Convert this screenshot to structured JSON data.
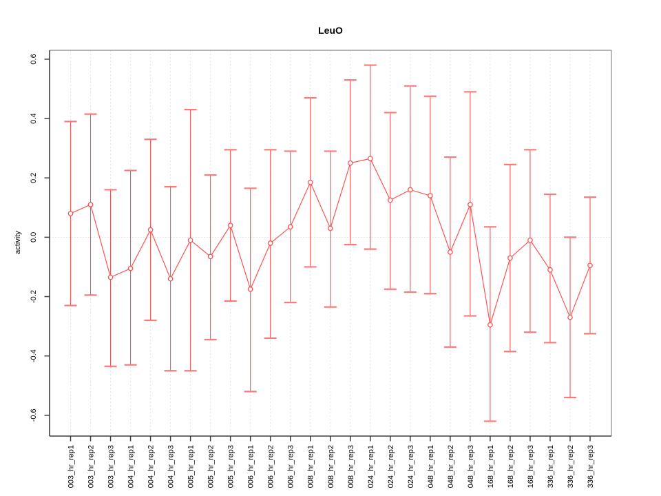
{
  "chart_data": {
    "type": "line",
    "title": "LeuO",
    "xlabel": "",
    "ylabel": "activity",
    "ylim": [
      -0.67,
      0.63
    ],
    "yticks": [
      0.6,
      0.4,
      0.2,
      0.0,
      -0.2,
      -0.4,
      -0.6
    ],
    "ytick_labels": [
      "0.6",
      "0.4",
      "0.2",
      "0.0",
      "-0.2",
      "-0.4",
      "-0.6"
    ],
    "legend": "none",
    "grid": {
      "vertical_dashed_per_category": true,
      "horizontal_dotted_zero_line": true
    },
    "marker": "open-circle",
    "categories": [
      "003_hr_rep1",
      "003_hr_rep2",
      "003_hr_rep3",
      "004_hr_rep1",
      "004_hr_rep2",
      "004_hr_rep3",
      "005_hr_rep1",
      "005_hr_rep2",
      "005_hr_rep3",
      "006_hr_rep1",
      "006_hr_rep2",
      "006_hr_rep3",
      "008_hr_rep1",
      "008_hr_rep2",
      "008_hr_rep3",
      "024_hr_rep1",
      "024_hr_rep2",
      "024_hr_rep3",
      "048_hr_rep1",
      "048_hr_rep2",
      "048_hr_rep3",
      "168_hr_rep1",
      "168_hr_rep2",
      "168_hr_rep3",
      "336_hr_rep1",
      "336_hr_rep2",
      "336_hr_rep3"
    ],
    "series": [
      {
        "name": "activity",
        "values": [
          0.08,
          0.11,
          -0.135,
          -0.105,
          0.025,
          -0.14,
          -0.01,
          -0.065,
          0.04,
          -0.175,
          -0.02,
          0.035,
          0.185,
          0.03,
          0.25,
          0.265,
          0.125,
          0.16,
          0.14,
          -0.05,
          0.11,
          -0.295,
          -0.07,
          -0.01,
          -0.11,
          -0.27,
          -0.095
        ],
        "error_high": [
          0.39,
          0.415,
          0.16,
          0.225,
          0.33,
          0.17,
          0.43,
          0.21,
          0.295,
          0.165,
          0.295,
          0.29,
          0.47,
          0.29,
          0.53,
          0.58,
          0.42,
          0.51,
          0.475,
          0.27,
          0.49,
          0.035,
          0.245,
          0.295,
          0.145,
          0.0,
          0.135
        ],
        "error_low": [
          -0.23,
          -0.195,
          -0.435,
          -0.43,
          -0.28,
          -0.45,
          -0.45,
          -0.345,
          -0.215,
          -0.52,
          -0.34,
          -0.22,
          -0.1,
          -0.235,
          -0.025,
          -0.04,
          -0.175,
          -0.185,
          -0.19,
          -0.37,
          -0.265,
          -0.62,
          -0.385,
          -0.32,
          -0.355,
          -0.54,
          -0.325
        ]
      }
    ],
    "colors": {
      "series": "#f85353",
      "cap": "#f97a7a",
      "grid": "#e2e2e2",
      "zero_line": "#d9d9d9",
      "axis_dark": "#3d3d3d",
      "frame_light": "#9a9a9a",
      "text": "#000000"
    }
  }
}
